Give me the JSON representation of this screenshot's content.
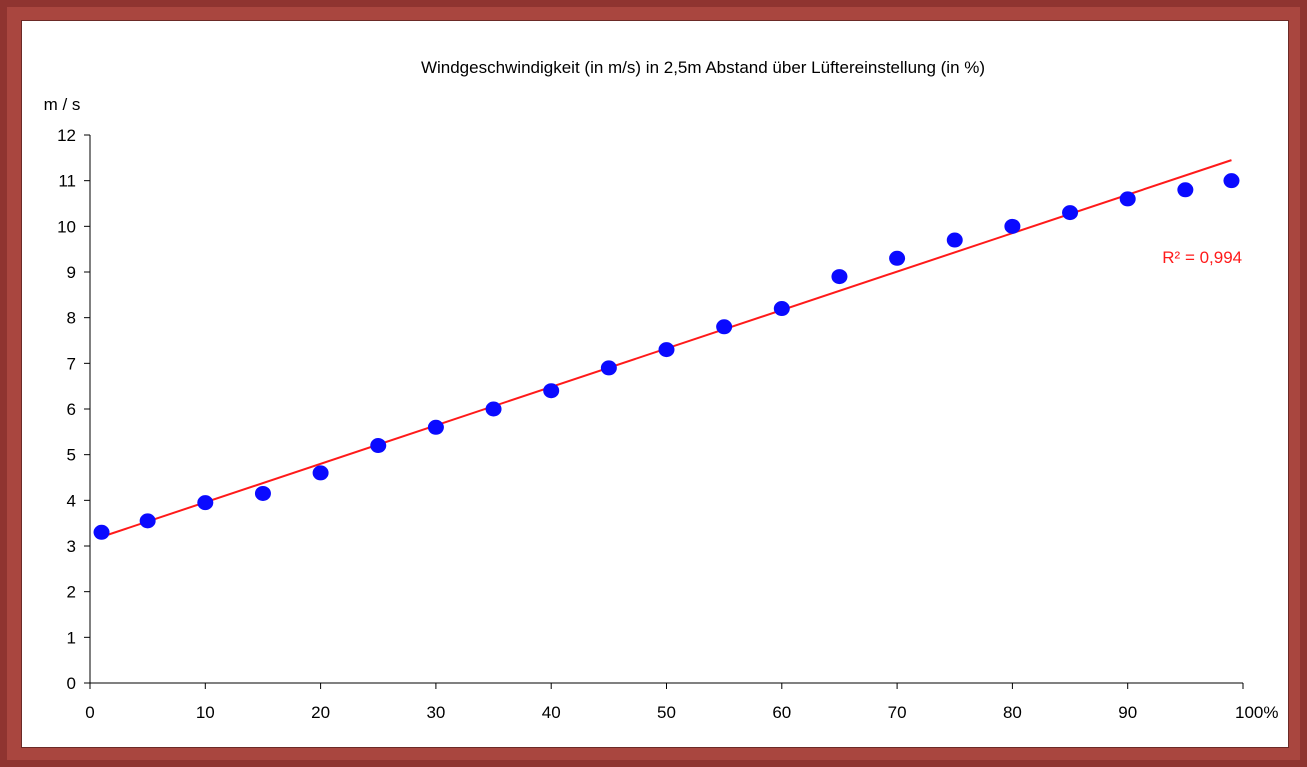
{
  "chart_data": {
    "type": "scatter",
    "title": "Windgeschwindigkeit (in m/s) in 2,5m Abstand über Lüftereinstellung (in %)",
    "ylabel": "m / s",
    "xlabel": "",
    "xlim": [
      0,
      100
    ],
    "ylim": [
      0,
      12
    ],
    "x_ticks": [
      "0",
      "10",
      "20",
      "30",
      "40",
      "50",
      "60",
      "70",
      "80",
      "90",
      "100%"
    ],
    "x_tick_values": [
      0,
      10,
      20,
      30,
      40,
      50,
      60,
      70,
      80,
      90,
      100
    ],
    "y_ticks": [
      "0",
      "1",
      "2",
      "3",
      "4",
      "5",
      "6",
      "7",
      "8",
      "9",
      "10",
      "11",
      "12"
    ],
    "y_tick_values": [
      0,
      1,
      2,
      3,
      4,
      5,
      6,
      7,
      8,
      9,
      10,
      11,
      12
    ],
    "grid": false,
    "series": [
      {
        "color": "#0a0aff",
        "points": [
          {
            "x": 1,
            "y": 3.3
          },
          {
            "x": 5,
            "y": 3.55
          },
          {
            "x": 10,
            "y": 3.95
          },
          {
            "x": 15,
            "y": 4.15
          },
          {
            "x": 20,
            "y": 4.6
          },
          {
            "x": 25,
            "y": 5.2
          },
          {
            "x": 30,
            "y": 5.6
          },
          {
            "x": 35,
            "y": 6.0
          },
          {
            "x": 40,
            "y": 6.4
          },
          {
            "x": 45,
            "y": 6.9
          },
          {
            "x": 50,
            "y": 7.3
          },
          {
            "x": 55,
            "y": 7.8
          },
          {
            "x": 60,
            "y": 8.2
          },
          {
            "x": 65,
            "y": 8.9
          },
          {
            "x": 70,
            "y": 9.3
          },
          {
            "x": 75,
            "y": 9.7
          },
          {
            "x": 80,
            "y": 10.0
          },
          {
            "x": 85,
            "y": 10.3
          },
          {
            "x": 90,
            "y": 10.6
          },
          {
            "x": 95,
            "y": 10.8
          },
          {
            "x": 99,
            "y": 11.0
          }
        ]
      }
    ],
    "trendline": {
      "type": "linear",
      "color": "#ff1a1a",
      "x_start": 1,
      "y_start": 3.2,
      "x_end": 99,
      "y_end": 11.45,
      "annotation": "R² = 0,994",
      "annotation_x": 93,
      "annotation_y": 9.2
    },
    "colors": {
      "axis": "#000000",
      "point": "#0a0aff",
      "trendline": "#ff1a1a",
      "frame": "#9b3a36"
    }
  }
}
